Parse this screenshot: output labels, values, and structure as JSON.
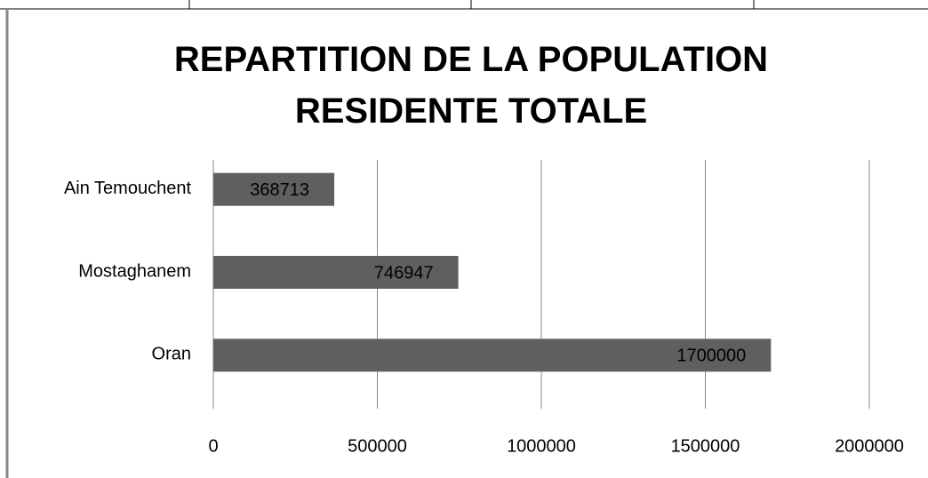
{
  "chart_data": {
    "type": "bar",
    "orientation": "horizontal",
    "title": "REPARTITION DE LA POPULATION RESIDENTE TOTALE",
    "categories": [
      "Ain Temouchent",
      "Mostaghanem",
      "Oran"
    ],
    "values": [
      368713,
      746947,
      1700000
    ],
    "color": "#5f5f5f",
    "xlim": [
      0,
      2000000
    ],
    "xticks": [
      0,
      500000,
      1000000,
      1500000,
      2000000
    ],
    "grid": true
  }
}
